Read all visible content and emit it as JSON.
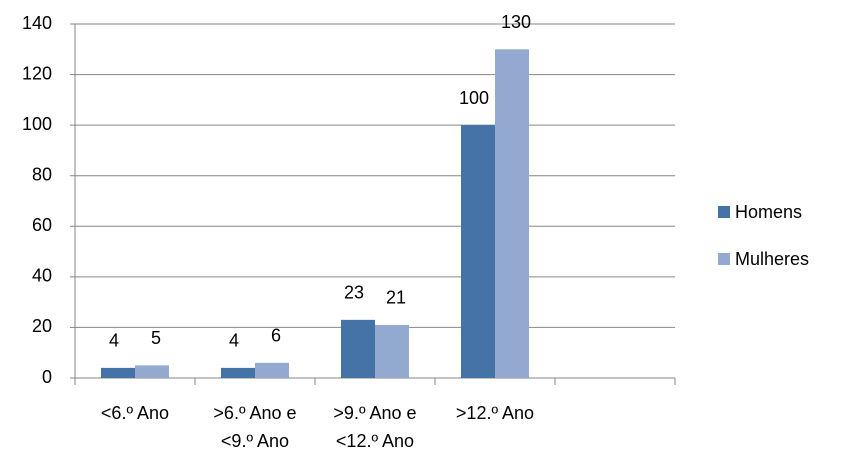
{
  "chart_data": {
    "type": "bar",
    "categories": [
      "<6.º Ano",
      ">6.º Ano e <9.º Ano",
      ">9.º Ano e <12.º Ano",
      ">12.º Ano",
      null
    ],
    "series": [
      {
        "name": "Homens",
        "color": "#4572a7",
        "values": [
          4,
          4,
          23,
          100,
          null
        ]
      },
      {
        "name": "Mulheres",
        "color": "#93a9cf",
        "values": [
          5,
          6,
          21,
          130,
          null
        ]
      }
    ],
    "ylim": [
      0,
      140
    ],
    "yticks": [
      0,
      20,
      40,
      60,
      80,
      100,
      120,
      140
    ],
    "grid": true,
    "legend": "right"
  }
}
